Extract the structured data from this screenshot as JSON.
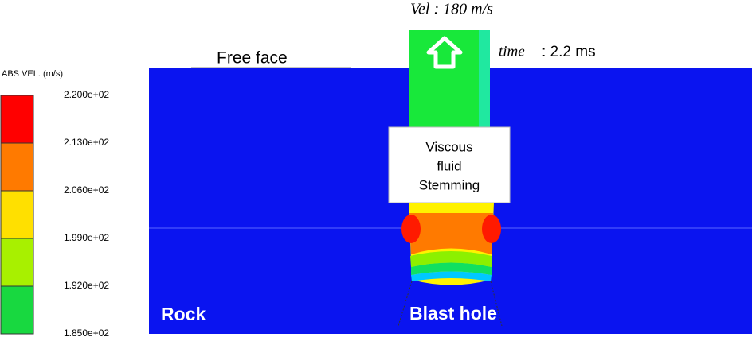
{
  "legend": {
    "title": "ABS VEL. (m/s)",
    "labels": [
      "2.200e+02",
      "2.130e+02",
      "2.060e+02",
      "1.990e+02",
      "1.920e+02",
      "1.850e+02"
    ]
  },
  "annotations": {
    "velocity": "Vel : 180 m/s",
    "time_label": "time",
    "time_value": ":  2.2 ms",
    "free_face": "Free face",
    "stemming": [
      "Viscous",
      "fluid",
      "Stemming"
    ],
    "rock": "Rock",
    "blast_hole": "Blast hole"
  }
}
